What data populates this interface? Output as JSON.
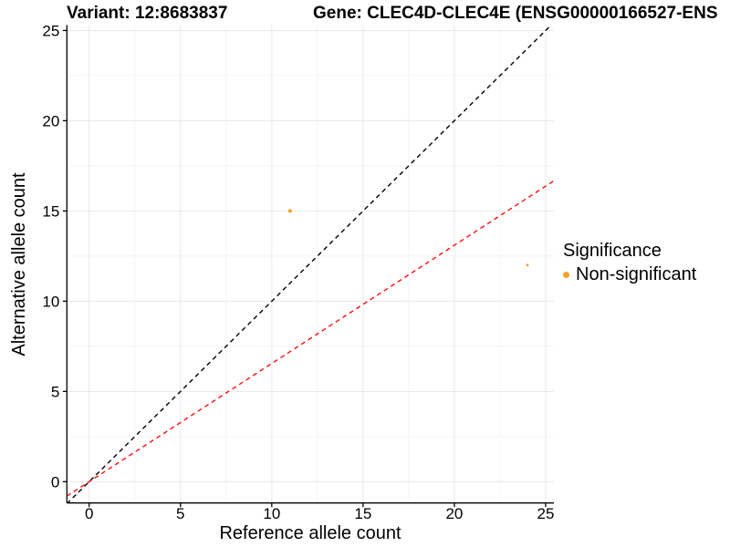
{
  "titles": {
    "variant": "Variant: 12:8683837",
    "gene": "Gene: CLEC4D-CLEC4E (ENSG00000166527-ENS"
  },
  "chart_data": {
    "type": "scatter",
    "xlabel": "Reference allele count",
    "ylabel": "Alternative allele count",
    "xlim": [
      -1.22,
      25.45
    ],
    "ylim": [
      -1.18,
      25.3
    ],
    "xticks": [
      0,
      5,
      10,
      15,
      20,
      25
    ],
    "yticks": [
      0,
      5,
      10,
      15,
      20,
      25
    ],
    "minor_grid_step": 2.5,
    "grid": "major and minor gridlines, light gray on white",
    "points": [
      {
        "x": 11,
        "y": 15,
        "series": "Non-significant",
        "r": 2.1
      },
      {
        "x": 24,
        "y": 12,
        "series": "Non-significant",
        "r": 1.4
      }
    ],
    "lines": [
      {
        "name": "identity-line",
        "slope": 1,
        "intercept": 0,
        "color": "#000000",
        "style": "dashed"
      },
      {
        "name": "expected-ratio-line",
        "slope": 0.655,
        "intercept": 0,
        "color": "#FA0F0F",
        "style": "dashed"
      }
    ],
    "legend": {
      "title": "Significance",
      "position": "right",
      "items": [
        {
          "label": "Non-significant",
          "color": "#F9A02B"
        }
      ]
    },
    "colors": {
      "point": "#F9A02B",
      "grid_major": "#E8E8E8",
      "grid_minor": "#F4F4F4",
      "axis": "#000000",
      "text": "#000000"
    }
  }
}
